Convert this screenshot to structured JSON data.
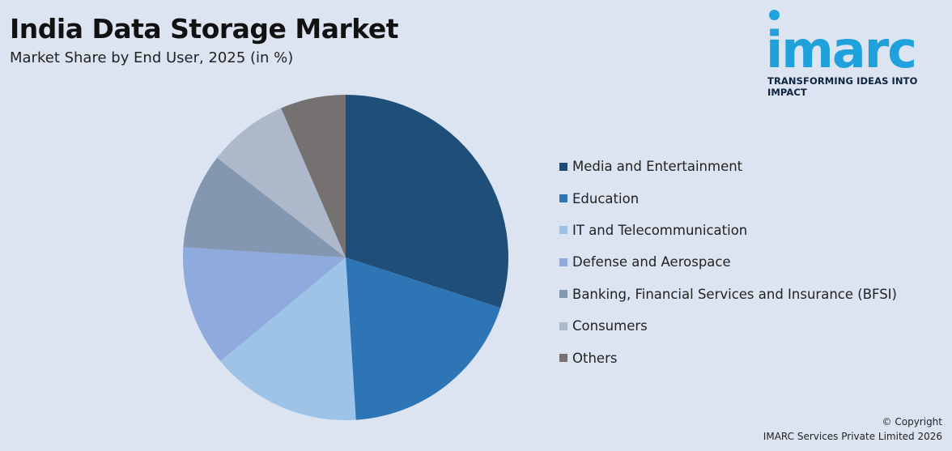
{
  "header": {
    "title": "India Data Storage Market",
    "subtitle": "Market Share by End User, 2025 (in %)"
  },
  "logo": {
    "wordmark": "imarc",
    "tagline": "TRANSFORMING IDEAS INTO IMPACT",
    "color": "#1fa1dc"
  },
  "chart_data": {
    "type": "pie",
    "title": "India Data Storage Market",
    "subtitle": "Market Share by End User, 2025 (in %)",
    "legend_position": "right",
    "start_angle": "12 o'clock",
    "direction": "clockwise",
    "slices": [
      {
        "label": "Media and Entertainment",
        "value": 30,
        "color": "#1f4e79"
      },
      {
        "label": "Education",
        "value": 19,
        "color": "#2e75b6"
      },
      {
        "label": "IT and Telecommunication",
        "value": 15,
        "color": "#9dc3e6"
      },
      {
        "label": "Defense and Aerospace",
        "value": 12,
        "color": "#8faadc"
      },
      {
        "label": "Banking, Financial Services and Insurance (BFSI)",
        "value": 9.5,
        "color": "#8497b0"
      },
      {
        "label": "Consumers",
        "value": 8,
        "color": "#adb9ca"
      },
      {
        "label": "Others",
        "value": 6.5,
        "color": "#767171"
      }
    ]
  },
  "footer": {
    "copyright_line1": "© Copyright",
    "copyright_line2": "IMARC Services Private Limited 2026"
  }
}
